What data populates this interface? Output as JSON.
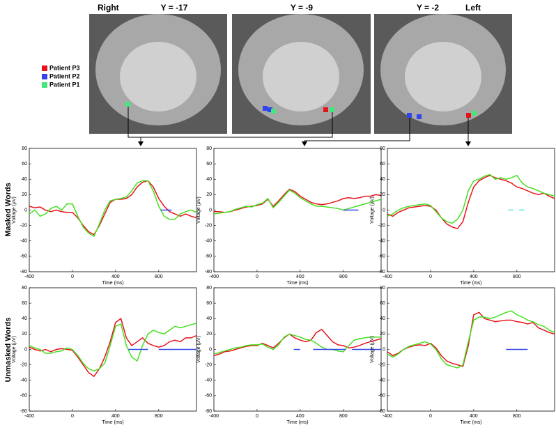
{
  "side_labels": {
    "right": "Right",
    "left": "Left"
  },
  "brain_panels": [
    {
      "label": "Y = -17"
    },
    {
      "label": "Y = -9"
    },
    {
      "label": "Y = -2"
    }
  ],
  "legend": [
    {
      "name": "Patient P3",
      "color": "#e8121a"
    },
    {
      "name": "Patient P2",
      "color": "#3344ee"
    },
    {
      "name": "Patient P1",
      "color": "#44e87a"
    }
  ],
  "row_labels": [
    "Masked Words",
    "Unmasked Words"
  ],
  "chart_data": [
    {
      "type": "line",
      "xlabel": "Time (ms)",
      "ylabel": "Voltage (μV)",
      "xlim": [
        -400,
        1150
      ],
      "ylim": [
        -80,
        80
      ],
      "xticks": [
        -400,
        0,
        400,
        800
      ],
      "yticks": [
        -80,
        -60,
        -40,
        -20,
        0,
        20,
        40,
        60,
        80
      ],
      "x": [
        -400,
        -350,
        -300,
        -250,
        -200,
        -150,
        -100,
        -50,
        0,
        50,
        100,
        150,
        200,
        250,
        300,
        350,
        400,
        450,
        500,
        550,
        600,
        650,
        700,
        750,
        800,
        850,
        900,
        950,
        1000,
        1050,
        1100,
        1150
      ],
      "series": [
        {
          "color": "#e8121a",
          "values": [
            5,
            3,
            4,
            0,
            -2,
            0,
            -2,
            -3,
            -3,
            -10,
            -20,
            -28,
            -32,
            -20,
            -5,
            10,
            14,
            14,
            15,
            20,
            30,
            36,
            38,
            30,
            15,
            5,
            -2,
            -5,
            -8,
            -5,
            -8,
            -10
          ]
        },
        {
          "color": "#44e020",
          "values": [
            -5,
            0,
            -8,
            -5,
            2,
            5,
            0,
            8,
            8,
            -8,
            -22,
            -30,
            -34,
            -18,
            0,
            12,
            14,
            15,
            17,
            25,
            35,
            38,
            38,
            25,
            5,
            -8,
            -12,
            -12,
            -5,
            -2,
            0,
            -3
          ]
        }
      ],
      "significance_color": "#3344ee",
      "significance": [
        [
          820,
          920
        ]
      ]
    },
    {
      "type": "line",
      "xlabel": "Time (ms)",
      "ylabel": "Voltage (μV)",
      "xlim": [
        -400,
        1150
      ],
      "ylim": [
        -80,
        80
      ],
      "xticks": [
        -400,
        0,
        400,
        800
      ],
      "yticks": [
        -80,
        -60,
        -40,
        -20,
        0,
        20,
        40,
        60,
        80
      ],
      "x": [
        -400,
        -350,
        -300,
        -250,
        -200,
        -150,
        -100,
        -50,
        0,
        50,
        100,
        150,
        200,
        250,
        300,
        350,
        400,
        450,
        500,
        550,
        600,
        650,
        700,
        750,
        800,
        850,
        900,
        950,
        1000,
        1050,
        1100,
        1150
      ],
      "series": [
        {
          "color": "#e8121a",
          "values": [
            -2,
            -2,
            -3,
            -2,
            0,
            2,
            4,
            5,
            6,
            8,
            14,
            5,
            12,
            20,
            27,
            24,
            18,
            14,
            10,
            8,
            7,
            8,
            10,
            12,
            15,
            16,
            15,
            16,
            18,
            18,
            20,
            19
          ]
        },
        {
          "color": "#44e020",
          "values": [
            -5,
            -4,
            -3,
            -2,
            1,
            3,
            5,
            4,
            7,
            9,
            15,
            3,
            10,
            18,
            26,
            22,
            16,
            12,
            8,
            5,
            5,
            4,
            3,
            2,
            0,
            2,
            4,
            6,
            8,
            10,
            12,
            14
          ]
        }
      ],
      "significance_color": "#3344ee",
      "significance": [
        [
          800,
          940
        ]
      ]
    },
    {
      "type": "line",
      "xlabel": "Time (ms)",
      "ylabel": "Voltage (μV)",
      "xlim": [
        -400,
        1150
      ],
      "ylim": [
        -80,
        80
      ],
      "xticks": [
        -400,
        0,
        400,
        800
      ],
      "yticks": [
        -80,
        -60,
        -40,
        -20,
        0,
        20,
        40,
        60,
        80
      ],
      "x": [
        -400,
        -350,
        -300,
        -250,
        -200,
        -150,
        -100,
        -50,
        0,
        50,
        100,
        150,
        200,
        250,
        300,
        350,
        400,
        450,
        500,
        550,
        600,
        650,
        700,
        750,
        800,
        850,
        900,
        950,
        1000,
        1050,
        1100,
        1150
      ],
      "series": [
        {
          "color": "#e8121a",
          "values": [
            -5,
            -8,
            -3,
            0,
            3,
            4,
            5,
            6,
            5,
            0,
            -10,
            -18,
            -22,
            -24,
            -15,
            10,
            30,
            38,
            42,
            45,
            42,
            40,
            38,
            35,
            30,
            28,
            25,
            22,
            20,
            22,
            18,
            15
          ]
        },
        {
          "color": "#44e020",
          "values": [
            -8,
            -5,
            0,
            3,
            5,
            6,
            7,
            8,
            6,
            -2,
            -10,
            -15,
            -17,
            -12,
            0,
            25,
            38,
            40,
            44,
            46,
            40,
            42,
            40,
            42,
            45,
            35,
            30,
            28,
            25,
            22,
            20,
            18
          ]
        }
      ],
      "significance_color": "#5ce0e0",
      "significance": [
        [
          720,
          770
        ],
        [
          820,
          870
        ]
      ]
    },
    {
      "type": "line",
      "xlabel": "Time (ms)",
      "ylabel": "Voltage (μV)",
      "xlim": [
        -400,
        1150
      ],
      "ylim": [
        -80,
        80
      ],
      "xticks": [
        -400,
        0,
        400,
        800
      ],
      "yticks": [
        -80,
        -60,
        -40,
        -20,
        0,
        20,
        40,
        60,
        80
      ],
      "x": [
        -400,
        -350,
        -300,
        -250,
        -200,
        -150,
        -100,
        -50,
        0,
        50,
        100,
        150,
        200,
        250,
        300,
        350,
        400,
        450,
        500,
        550,
        600,
        650,
        700,
        750,
        800,
        850,
        900,
        950,
        1000,
        1050,
        1100,
        1150
      ],
      "series": [
        {
          "color": "#e8121a",
          "values": [
            3,
            0,
            -2,
            0,
            -3,
            0,
            1,
            0,
            -1,
            -10,
            -20,
            -30,
            -35,
            -25,
            -10,
            10,
            35,
            40,
            15,
            5,
            10,
            15,
            8,
            5,
            3,
            5,
            10,
            12,
            10,
            15,
            15,
            18
          ]
        },
        {
          "color": "#44e020",
          "values": [
            5,
            2,
            0,
            -5,
            -5,
            -3,
            -2,
            2,
            0,
            -8,
            -18,
            -25,
            -28,
            -25,
            -18,
            5,
            30,
            33,
            5,
            -10,
            -15,
            5,
            20,
            25,
            22,
            20,
            25,
            30,
            28,
            30,
            32,
            34
          ]
        }
      ],
      "significance_color": "#3344ee",
      "significance": [
        [
          520,
          700
        ],
        [
          800,
          1150
        ]
      ]
    },
    {
      "type": "line",
      "xlabel": "Time (ms)",
      "ylabel": "Voltage (μV)",
      "xlim": [
        -400,
        1150
      ],
      "ylim": [
        -80,
        80
      ],
      "xticks": [
        -400,
        0,
        400,
        800
      ],
      "yticks": [
        -80,
        -60,
        -40,
        -20,
        0,
        20,
        40,
        60,
        80
      ],
      "x": [
        -400,
        -350,
        -300,
        -250,
        -200,
        -150,
        -100,
        -50,
        0,
        50,
        100,
        150,
        200,
        250,
        300,
        350,
        400,
        450,
        500,
        550,
        600,
        650,
        700,
        750,
        800,
        850,
        900,
        950,
        1000,
        1050,
        1100,
        1150
      ],
      "series": [
        {
          "color": "#e8121a",
          "values": [
            -8,
            -6,
            -3,
            -2,
            0,
            2,
            4,
            5,
            5,
            8,
            5,
            2,
            8,
            15,
            20,
            15,
            12,
            10,
            12,
            22,
            26,
            18,
            10,
            6,
            5,
            2,
            3,
            5,
            8,
            10,
            12,
            14
          ]
        },
        {
          "color": "#44e020",
          "values": [
            -6,
            -4,
            -2,
            0,
            2,
            3,
            5,
            6,
            6,
            7,
            3,
            0,
            6,
            16,
            20,
            18,
            16,
            13,
            12,
            8,
            3,
            0,
            0,
            -2,
            -3,
            5,
            12,
            14,
            15,
            16,
            16,
            16
          ]
        }
      ],
      "significance_color": "#3344ee",
      "significance": [
        [
          340,
          400
        ],
        [
          520,
          820
        ],
        [
          880,
          1150
        ]
      ]
    },
    {
      "type": "line",
      "xlabel": "Time (ms)",
      "ylabel": "Voltage (μV)",
      "xlim": [
        -400,
        1150
      ],
      "ylim": [
        -80,
        80
      ],
      "xticks": [
        -400,
        0,
        400,
        800
      ],
      "yticks": [
        -80,
        -60,
        -40,
        -20,
        0,
        20,
        40,
        60,
        80
      ],
      "x": [
        -400,
        -350,
        -300,
        -250,
        -200,
        -150,
        -100,
        -50,
        0,
        50,
        100,
        150,
        200,
        250,
        300,
        350,
        400,
        450,
        500,
        550,
        600,
        650,
        700,
        750,
        800,
        850,
        900,
        950,
        1000,
        1050,
        1100,
        1150
      ],
      "series": [
        {
          "color": "#e8121a",
          "values": [
            -3,
            -8,
            -5,
            0,
            3,
            5,
            6,
            5,
            8,
            2,
            -8,
            -15,
            -18,
            -20,
            -22,
            5,
            45,
            48,
            40,
            38,
            36,
            37,
            38,
            38,
            36,
            35,
            33,
            35,
            28,
            25,
            22,
            20
          ]
        },
        {
          "color": "#44e020",
          "values": [
            -6,
            -10,
            -6,
            0,
            4,
            6,
            8,
            10,
            7,
            0,
            -12,
            -20,
            -22,
            -24,
            -20,
            10,
            38,
            42,
            42,
            40,
            42,
            45,
            48,
            50,
            45,
            42,
            38,
            36,
            32,
            30,
            25,
            22
          ]
        }
      ],
      "significance_color": "#3344ee",
      "significance": [
        [
          700,
          900
        ]
      ]
    }
  ]
}
